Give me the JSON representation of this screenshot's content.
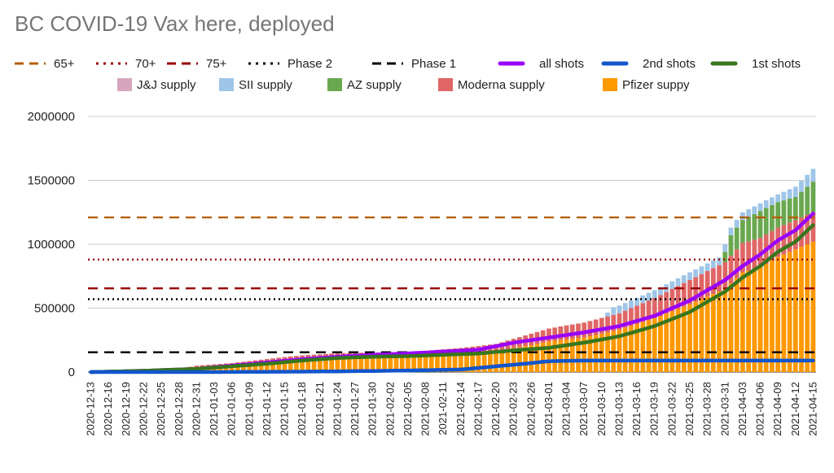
{
  "chart_data": {
    "type": "bar",
    "title": "BC COVID-19 Vax here, deployed",
    "xlabel": "",
    "ylabel": "",
    "ylim": [
      0,
      2000000
    ],
    "yticks": [
      0,
      500000,
      1000000,
      1500000,
      2000000
    ],
    "grid": true,
    "legend_position": "top",
    "start_date": "2020-12-13",
    "end_date": "2021-04-15",
    "xtick_labels": [
      "2020-12-13",
      "2020-12-16",
      "2020-12-19",
      "2020-12-22",
      "2020-12-25",
      "2020-12-28",
      "2020-12-31",
      "2021-01-03",
      "2021-01-06",
      "2021-01-09",
      "2021-01-12",
      "2021-01-15",
      "2021-01-18",
      "2021-01-21",
      "2021-01-24",
      "2021-01-27",
      "2021-01-30",
      "2021-02-02",
      "2021-02-05",
      "2021-02-08",
      "2021-02-11",
      "2021-02-14",
      "2021-02-17",
      "2021-02-20",
      "2021-02-23",
      "2021-02-26",
      "2021-03-01",
      "2021-03-04",
      "2021-03-07",
      "2021-03-10",
      "2021-03-13",
      "2021-03-16",
      "2021-03-19",
      "2021-03-22",
      "2021-03-25",
      "2021-03-28",
      "2021-03-31",
      "2021-04-03",
      "2021-04-06",
      "2021-04-09",
      "2021-04-12",
      "2021-04-15"
    ],
    "legend": [
      {
        "label": "65+",
        "color": "#b45f06",
        "style": "dashed-long"
      },
      {
        "label": "70+",
        "color": "#990000",
        "style": "dotted"
      },
      {
        "label": "75+",
        "color": "#990000",
        "style": "dashed-long"
      },
      {
        "label": "Phase 2",
        "color": "#000000",
        "style": "dotted"
      },
      {
        "label": "Phase 1",
        "color": "#000000",
        "style": "dashed-long"
      },
      {
        "label": "all shots",
        "color": "#9900ff",
        "style": "line"
      },
      {
        "label": "2nd shots",
        "color": "#1155cc",
        "style": "line"
      },
      {
        "label": "1st shots",
        "color": "#38761d",
        "style": "line"
      },
      {
        "label": "J&J supply",
        "color": "#d5a6bd",
        "style": "box"
      },
      {
        "label": "SII supply",
        "color": "#9fc5e8",
        "style": "box"
      },
      {
        "label": "AZ supply",
        "color": "#6aa84f",
        "style": "box"
      },
      {
        "label": "Moderna supply",
        "color": "#e06666",
        "style": "box"
      },
      {
        "label": "Pfizer suppy",
        "color": "#ff9900",
        "style": "box"
      }
    ],
    "reference_lines": [
      {
        "name": "65+",
        "value": 1210000,
        "color": "#b45f06",
        "dash": "dashed"
      },
      {
        "name": "70+",
        "value": 880000,
        "color": "#990000",
        "dash": "dotted"
      },
      {
        "name": "75+",
        "value": 655000,
        "color": "#990000",
        "dash": "dashed"
      },
      {
        "name": "Phase 2",
        "value": 570000,
        "color": "#000000",
        "dash": "dotted"
      },
      {
        "name": "Phase 1",
        "value": 155000,
        "color": "#000000",
        "dash": "dashed"
      }
    ],
    "supply_series": [
      {
        "name": "Pfizer suppy",
        "color": "#ff9900",
        "points": [
          [
            "2020-12-13",
            0
          ],
          [
            "2020-12-16",
            5000
          ],
          [
            "2020-12-22",
            12000
          ],
          [
            "2020-12-31",
            30000
          ],
          [
            "2021-01-06",
            50000
          ],
          [
            "2021-01-12",
            75000
          ],
          [
            "2021-01-18",
            100000
          ],
          [
            "2021-01-24",
            115000
          ],
          [
            "2021-02-02",
            120000
          ],
          [
            "2021-02-08",
            125000
          ],
          [
            "2021-02-14",
            140000
          ],
          [
            "2021-02-20",
            165000
          ],
          [
            "2021-02-26",
            210000
          ],
          [
            "2021-03-01",
            240000
          ],
          [
            "2021-03-07",
            270000
          ],
          [
            "2021-03-13",
            330000
          ],
          [
            "2021-03-19",
            420000
          ],
          [
            "2021-03-25",
            530000
          ],
          [
            "2021-03-31",
            650000
          ],
          [
            "2021-04-03",
            780000
          ],
          [
            "2021-04-06",
            820000
          ],
          [
            "2021-04-09",
            900000
          ],
          [
            "2021-04-12",
            960000
          ],
          [
            "2021-04-15",
            1020000
          ]
        ]
      },
      {
        "name": "Moderna supply",
        "color": "#e06666",
        "points": [
          [
            "2020-12-13",
            0
          ],
          [
            "2020-12-28",
            0
          ],
          [
            "2020-12-31",
            20000
          ],
          [
            "2021-01-06",
            20000
          ],
          [
            "2021-01-15",
            30000
          ],
          [
            "2021-02-02",
            35000
          ],
          [
            "2021-02-20",
            55000
          ],
          [
            "2021-02-26",
            90000
          ],
          [
            "2021-03-04",
            110000
          ],
          [
            "2021-03-13",
            130000
          ],
          [
            "2021-03-19",
            160000
          ],
          [
            "2021-03-25",
            190000
          ],
          [
            "2021-03-31",
            210000
          ],
          [
            "2021-04-03",
            230000
          ],
          [
            "2021-04-09",
            230000
          ],
          [
            "2021-04-15",
            230000
          ]
        ]
      },
      {
        "name": "AZ supply",
        "color": "#6aa84f",
        "points": [
          [
            "2020-12-13",
            0
          ],
          [
            "2021-03-30",
            0
          ],
          [
            "2021-04-01",
            160000
          ],
          [
            "2021-04-06",
            210000
          ],
          [
            "2021-04-09",
            200000
          ],
          [
            "2021-04-12",
            180000
          ],
          [
            "2021-04-15",
            240000
          ]
        ]
      },
      {
        "name": "SII supply",
        "color": "#9fc5e8",
        "points": [
          [
            "2020-12-13",
            0
          ],
          [
            "2021-03-10",
            0
          ],
          [
            "2021-03-12",
            60000
          ],
          [
            "2021-03-25",
            60000
          ],
          [
            "2021-03-31",
            60000
          ],
          [
            "2021-04-03",
            60000
          ],
          [
            "2021-04-09",
            60000
          ],
          [
            "2021-04-15",
            100000
          ]
        ]
      },
      {
        "name": "J&J supply",
        "color": "#d5a6bd",
        "points": [
          [
            "2020-12-13",
            0
          ],
          [
            "2021-04-15",
            0
          ]
        ]
      }
    ],
    "line_series": [
      {
        "name": "all shots",
        "color": "#9900ff",
        "points": [
          [
            "2020-12-13",
            0
          ],
          [
            "2020-12-16",
            3000
          ],
          [
            "2020-12-22",
            10000
          ],
          [
            "2020-12-31",
            25000
          ],
          [
            "2021-01-06",
            50000
          ],
          [
            "2021-01-12",
            75000
          ],
          [
            "2021-01-18",
            100000
          ],
          [
            "2021-01-24",
            120000
          ],
          [
            "2021-01-30",
            135000
          ],
          [
            "2021-02-05",
            145000
          ],
          [
            "2021-02-11",
            160000
          ],
          [
            "2021-02-17",
            175000
          ],
          [
            "2021-02-23",
            230000
          ],
          [
            "2021-03-01",
            270000
          ],
          [
            "2021-03-07",
            310000
          ],
          [
            "2021-03-13",
            360000
          ],
          [
            "2021-03-19",
            440000
          ],
          [
            "2021-03-25",
            560000
          ],
          [
            "2021-03-31",
            720000
          ],
          [
            "2021-04-03",
            830000
          ],
          [
            "2021-04-06",
            920000
          ],
          [
            "2021-04-09",
            1030000
          ],
          [
            "2021-04-12",
            1110000
          ],
          [
            "2021-04-15",
            1240000
          ]
        ]
      },
      {
        "name": "1st shots",
        "color": "#38761d",
        "points": [
          [
            "2020-12-13",
            0
          ],
          [
            "2020-12-16",
            3000
          ],
          [
            "2020-12-22",
            10000
          ],
          [
            "2020-12-31",
            25000
          ],
          [
            "2021-01-06",
            45000
          ],
          [
            "2021-01-12",
            65000
          ],
          [
            "2021-01-18",
            90000
          ],
          [
            "2021-01-24",
            110000
          ],
          [
            "2021-01-30",
            120000
          ],
          [
            "2021-02-05",
            125000
          ],
          [
            "2021-02-11",
            135000
          ],
          [
            "2021-02-17",
            145000
          ],
          [
            "2021-02-23",
            170000
          ],
          [
            "2021-03-01",
            190000
          ],
          [
            "2021-03-07",
            230000
          ],
          [
            "2021-03-13",
            280000
          ],
          [
            "2021-03-19",
            360000
          ],
          [
            "2021-03-25",
            470000
          ],
          [
            "2021-03-31",
            630000
          ],
          [
            "2021-04-03",
            740000
          ],
          [
            "2021-04-06",
            830000
          ],
          [
            "2021-04-09",
            940000
          ],
          [
            "2021-04-12",
            1020000
          ],
          [
            "2021-04-15",
            1150000
          ]
        ]
      },
      {
        "name": "2nd shots",
        "color": "#1155cc",
        "points": [
          [
            "2020-12-13",
            0
          ],
          [
            "2021-01-03",
            0
          ],
          [
            "2021-01-12",
            2000
          ],
          [
            "2021-01-24",
            5000
          ],
          [
            "2021-02-05",
            12000
          ],
          [
            "2021-02-14",
            20000
          ],
          [
            "2021-02-20",
            45000
          ],
          [
            "2021-02-26",
            70000
          ],
          [
            "2021-03-01",
            85000
          ],
          [
            "2021-03-07",
            90000
          ],
          [
            "2021-03-19",
            90000
          ],
          [
            "2021-04-15",
            90000
          ]
        ]
      }
    ]
  }
}
